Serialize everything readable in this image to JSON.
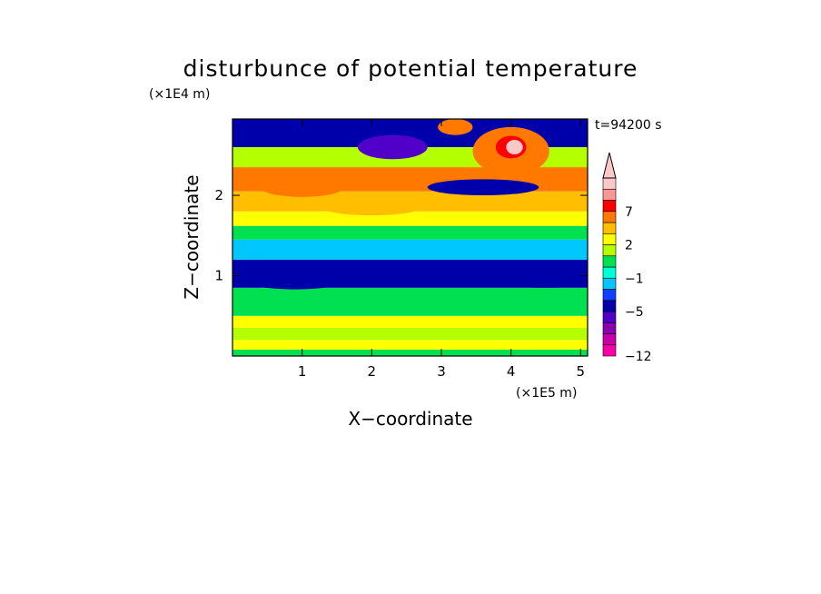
{
  "chart_data": {
    "type": "heatmap",
    "title": "disturbunce of potential temperature",
    "time_label": "t=94200 s",
    "xlabel": "X−coordinate",
    "ylabel": "Z−coordinate",
    "x_unit": "(×1E5 m)",
    "y_unit": "(×1E4 m)",
    "xlim": [
      0,
      5.1
    ],
    "ylim": [
      0,
      2.95
    ],
    "x_ticks": [
      "1",
      "2",
      "3",
      "4",
      "5"
    ],
    "y_ticks": [
      "1",
      "2"
    ],
    "x_tick_values": [
      1,
      2,
      3,
      4,
      5
    ],
    "y_tick_values": [
      1,
      2
    ],
    "colorbar": {
      "levels": [
        {
          "value": -12,
          "color": "#ff00a8"
        },
        {
          "value": -10,
          "color": "#c800a8"
        },
        {
          "value": -8,
          "color": "#8c00b4"
        },
        {
          "value": -6,
          "color": "#5000c8"
        },
        {
          "value": -5,
          "color": "#0000aa"
        },
        {
          "value": -4,
          "color": "#1040ff"
        },
        {
          "value": -2,
          "color": "#00c8ff"
        },
        {
          "value": -1,
          "color": "#00ffd2"
        },
        {
          "value": 0,
          "color": "#00e050"
        },
        {
          "value": 1,
          "color": "#b4ff00"
        },
        {
          "value": 2,
          "color": "#ffff00"
        },
        {
          "value": 3,
          "color": "#ffbe00"
        },
        {
          "value": 5,
          "color": "#ff7800"
        },
        {
          "value": 7,
          "color": "#ff0000"
        },
        {
          "value": 8,
          "color": "#ff9696"
        },
        {
          "value": 9,
          "color": "#ffc8c8"
        }
      ],
      "tick_labels": [
        "−12",
        "−5",
        "−1",
        "2",
        "7"
      ],
      "tick_values": [
        -12,
        -5,
        -1,
        2,
        7
      ],
      "extend": "max"
    },
    "field_bands": [
      {
        "z": [
          0.0,
          0.08
        ],
        "value": 0
      },
      {
        "z": [
          0.08,
          0.2
        ],
        "value": 2
      },
      {
        "z": [
          0.2,
          0.35
        ],
        "value": 1
      },
      {
        "z": [
          0.35,
          0.5
        ],
        "value": 2
      },
      {
        "z": [
          0.5,
          0.85
        ],
        "value": 0
      },
      {
        "z": [
          0.85,
          1.2
        ],
        "value": -5
      },
      {
        "z": [
          1.2,
          1.45
        ],
        "value": -2
      },
      {
        "z": [
          1.45,
          1.62
        ],
        "value": 0
      },
      {
        "z": [
          1.62,
          1.8
        ],
        "value": 2
      },
      {
        "z": [
          1.8,
          2.05
        ],
        "value": 3
      },
      {
        "z": [
          2.05,
          2.35
        ],
        "value": 5
      },
      {
        "z": [
          2.35,
          2.6
        ],
        "value": 1
      },
      {
        "z": [
          2.6,
          2.95
        ],
        "value": -5
      }
    ],
    "field_features": [
      {
        "x": 0.6,
        "z": 2.75,
        "rx": 0.45,
        "rz": 0.12,
        "value": -5
      },
      {
        "x": 2.3,
        "z": 2.6,
        "rx": 0.5,
        "rz": 0.15,
        "value": -6
      },
      {
        "x": 3.2,
        "z": 2.85,
        "rx": 0.25,
        "rz": 0.1,
        "value": 5
      },
      {
        "x": 4.0,
        "z": 2.55,
        "rx": 0.55,
        "rz": 0.3,
        "value": 5
      },
      {
        "x": 4.0,
        "z": 2.6,
        "rx": 0.22,
        "rz": 0.14,
        "value": 7
      },
      {
        "x": 4.05,
        "z": 2.6,
        "rx": 0.12,
        "rz": 0.09,
        "value": 9
      },
      {
        "x": 3.6,
        "z": 2.1,
        "rx": 0.8,
        "rz": 0.1,
        "value": -5
      },
      {
        "x": 0.9,
        "z": 1.0,
        "rx": 0.9,
        "rz": 0.17,
        "value": -5
      },
      {
        "x": 2.2,
        "z": 1.0,
        "rx": 0.7,
        "rz": 0.13,
        "value": -5
      },
      {
        "x": 4.5,
        "z": 0.95,
        "rx": 0.9,
        "rz": 0.1,
        "value": -5
      },
      {
        "x": 1.5,
        "z": 0.4,
        "rx": 1.6,
        "rz": 0.05,
        "value": 2
      },
      {
        "x": 1.0,
        "z": 2.1,
        "rx": 0.6,
        "rz": 0.12,
        "value": 5
      },
      {
        "x": 2.0,
        "z": 1.85,
        "rx": 0.7,
        "rz": 0.1,
        "value": 3
      }
    ]
  }
}
